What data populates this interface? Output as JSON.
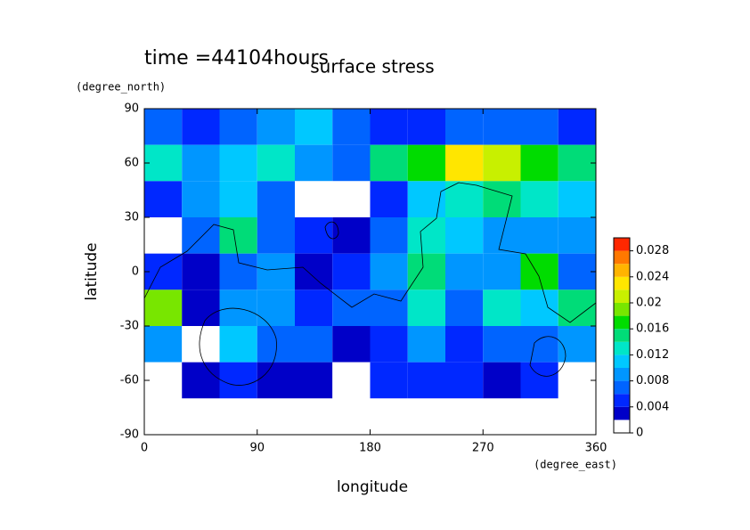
{
  "chart_data": {
    "type": "contour",
    "title": "surface stress",
    "subtitle": "time =44104hours",
    "x_label": "longitude",
    "y_label": "latitude",
    "x_unit": "(degree_east)",
    "y_unit": "(degree_north)",
    "xlim": [
      0,
      360
    ],
    "ylim": [
      -90,
      90
    ],
    "xticks": [
      0,
      90,
      180,
      270,
      360
    ],
    "yticks": [
      90,
      60,
      30,
      0,
      -30,
      -60,
      -90
    ],
    "x": [
      15,
      45,
      75,
      105,
      135,
      165,
      195,
      225,
      255,
      285,
      315,
      345
    ],
    "y": [
      80,
      60,
      40,
      20,
      0,
      -20,
      -40,
      -60,
      -80
    ],
    "values": [
      [
        0.006,
        0.005,
        0.006,
        0.008,
        0.01,
        0.006,
        0.005,
        0.005,
        0.006,
        0.006,
        0.006,
        0.005
      ],
      [
        0.012,
        0.008,
        0.01,
        0.012,
        0.008,
        0.006,
        0.014,
        0.016,
        0.022,
        0.02,
        0.016,
        0.014
      ],
      [
        0.004,
        0.008,
        0.01,
        0.006,
        0.001,
        0.001,
        0.004,
        0.01,
        0.012,
        0.014,
        0.012,
        0.01
      ],
      [
        0.001,
        0.006,
        0.014,
        0.006,
        0.004,
        0.002,
        0.006,
        0.012,
        0.01,
        0.008,
        0.008,
        0.008
      ],
      [
        0.004,
        0.002,
        0.006,
        0.008,
        0.002,
        0.004,
        0.008,
        0.014,
        0.008,
        0.008,
        0.016,
        0.006
      ],
      [
        0.018,
        0.002,
        0.008,
        0.008,
        0.004,
        0.006,
        0.006,
        0.012,
        0.006,
        0.012,
        0.01,
        0.014
      ],
      [
        0.008,
        0.001,
        0.01,
        0.006,
        0.006,
        0.002,
        0.004,
        0.008,
        0.004,
        0.006,
        0.006,
        0.008
      ],
      [
        0.001,
        0.002,
        0.004,
        0.002,
        0.002,
        0.001,
        0.004,
        0.004,
        0.004,
        0.002,
        0.004,
        0.001
      ],
      [
        0,
        0,
        0,
        0,
        0,
        0,
        0,
        0,
        0,
        0,
        0,
        0
      ]
    ],
    "levels": [
      0,
      0.002,
      0.004,
      0.006,
      0.008,
      0.01,
      0.012,
      0.014,
      0.016,
      0.018,
      0.02,
      0.022,
      0.024,
      0.026,
      0.028,
      0.03
    ],
    "colors": [
      "#ffffff",
      "#0000c8",
      "#0028ff",
      "#0064ff",
      "#0096ff",
      "#00c8ff",
      "#00e6c8",
      "#00dc78",
      "#00dc00",
      "#78e600",
      "#c8f000",
      "#ffe600",
      "#ffb400",
      "#ff7800",
      "#ff2800"
    ],
    "colorbar_ticks": [
      0,
      0.004,
      0.008,
      0.012,
      0.016,
      0.02,
      0.024,
      0.028
    ]
  }
}
